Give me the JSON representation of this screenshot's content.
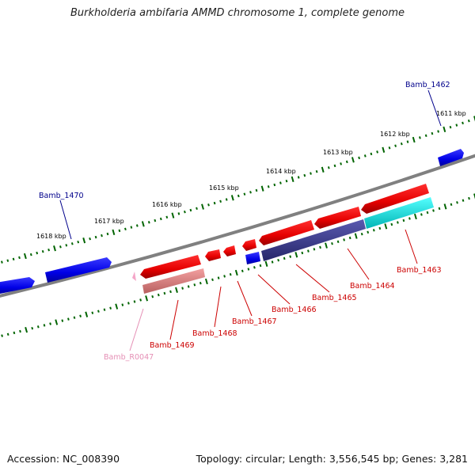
{
  "title": "Burkholderia ambifaria AMMD chromosome 1, complete genome",
  "footer": {
    "accession": "Accession: NC_008390",
    "summary": "Topology: circular; Length: 3,556,545 bp; Genes: 3,281"
  },
  "colors": {
    "backbone": "#808080",
    "ticks": "#006400",
    "forward_gene": "#0000ee",
    "reverse_gene": "#ee0000",
    "rna_gene": "#f4a6c8",
    "pseudo_gene": "#e88b8b",
    "cds_variant": "#3b3b8f",
    "highlight": "#00e0e0",
    "label_forward": "#00008b",
    "label_reverse": "#cc0000",
    "label_rna": "#e58fb5"
  },
  "kbp_ticks": [
    {
      "label": "1618 kbp"
    },
    {
      "label": "1617 kbp"
    },
    {
      "label": "1616 kbp"
    },
    {
      "label": "1615 kbp"
    },
    {
      "label": "1614 kbp"
    },
    {
      "label": "1613 kbp"
    },
    {
      "label": "1612 kbp"
    },
    {
      "label": "1611 kbp"
    }
  ],
  "gene_labels": [
    {
      "name": "Bamb_1462",
      "strand": "forward"
    },
    {
      "name": "Bamb_1470",
      "strand": "forward"
    },
    {
      "name": "Bamb_1463",
      "strand": "reverse"
    },
    {
      "name": "Bamb_1464",
      "strand": "reverse"
    },
    {
      "name": "Bamb_1465",
      "strand": "reverse"
    },
    {
      "name": "Bamb_1466",
      "strand": "reverse"
    },
    {
      "name": "Bamb_1467",
      "strand": "reverse"
    },
    {
      "name": "Bamb_1468",
      "strand": "reverse"
    },
    {
      "name": "Bamb_1469",
      "strand": "reverse"
    },
    {
      "name": "Bamb_R0047",
      "strand": "rna"
    }
  ]
}
